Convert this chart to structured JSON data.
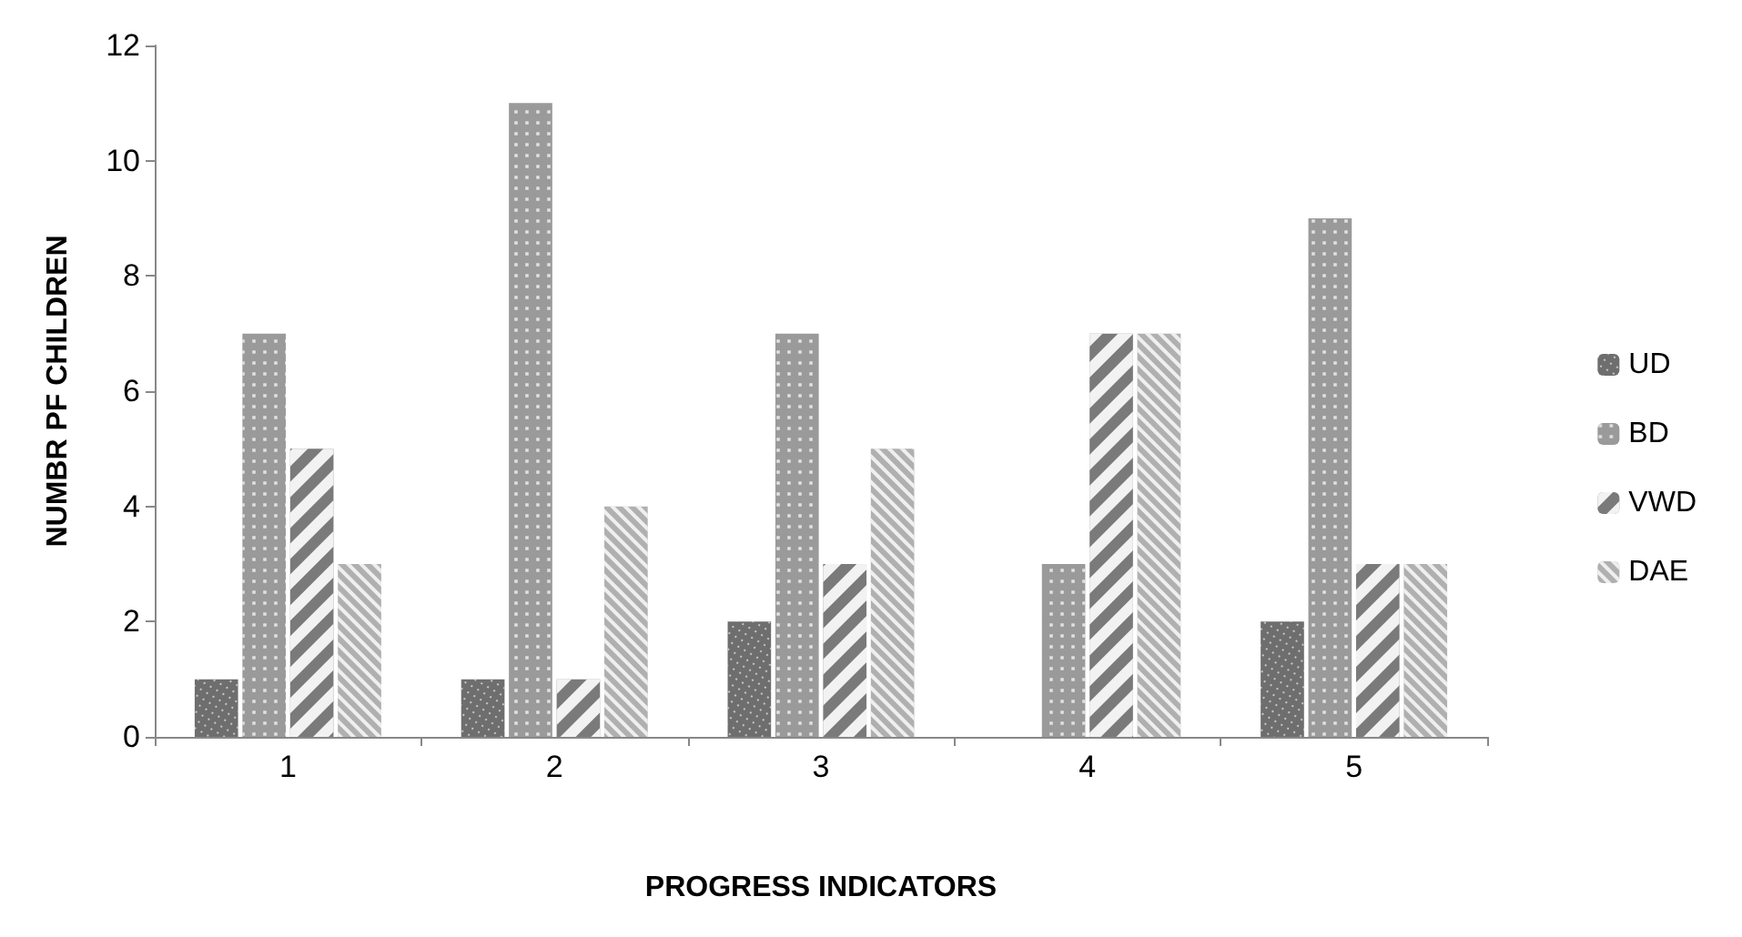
{
  "chart_data": {
    "type": "bar",
    "xlabel": "PROGRESS INDICATORS",
    "ylabel": "NUMBR PF CHILDREN",
    "categories": [
      "1",
      "2",
      "3",
      "4",
      "5"
    ],
    "series": [
      {
        "name": "UD",
        "color": "#6e6e6e",
        "values": [
          1,
          1,
          2,
          0,
          2
        ]
      },
      {
        "name": "BD",
        "color": "#9a9a9a",
        "values": [
          7,
          11,
          7,
          3,
          9
        ]
      },
      {
        "name": "VWD",
        "color": "#7a7a7a",
        "values": [
          5,
          1,
          3,
          7,
          3
        ]
      },
      {
        "name": "DAE",
        "color": "#b0b0b0",
        "values": [
          3,
          4,
          5,
          7,
          3
        ]
      }
    ],
    "ylim": [
      0,
      12
    ],
    "yticks": [
      0,
      2,
      4,
      6,
      8,
      10,
      12
    ],
    "grid": false,
    "legend": "right"
  }
}
